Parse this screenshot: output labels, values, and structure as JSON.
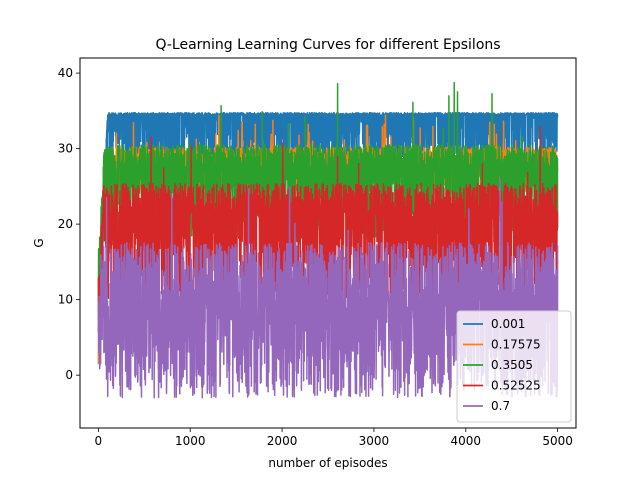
{
  "chart_data": {
    "type": "line",
    "title": "Q-Learning Learning Curves for different Epsilons",
    "xlabel": "number of episodes",
    "ylabel": "G",
    "xlim": [
      -200,
      5200
    ],
    "ylim": [
      -7,
      42
    ],
    "xticks": [
      0,
      1000,
      2000,
      3000,
      4000,
      5000
    ],
    "yticks": [
      0,
      10,
      20,
      30,
      40
    ],
    "grid": false,
    "legend_position": "lower right",
    "n_episodes": 5000,
    "series": [
      {
        "name": "0.001",
        "color": "#1f77b4",
        "start": 7,
        "rise_episodes": 100,
        "low_band": 27,
        "high": 34.8,
        "typical": 34.5,
        "spike_max": 34.8,
        "spike_rate": 0.0
      },
      {
        "name": "0.17575",
        "color": "#ff7f0e",
        "start": 5,
        "rise_episodes": 80,
        "low_band": 24,
        "high": 30.5,
        "typical": 28.5,
        "spike_max": 34.5,
        "spike_rate": 0.01
      },
      {
        "name": "0.3505",
        "color": "#2ca02c",
        "start": 12,
        "rise_episodes": 60,
        "low_band": 18,
        "high": 31,
        "typical": 28,
        "spike_max": 38.8,
        "spike_rate": 0.004
      },
      {
        "name": "0.52525",
        "color": "#d62728",
        "start": 8,
        "rise_episodes": 50,
        "low_band": 10,
        "high": 26,
        "typical": 22,
        "spike_max": 33,
        "spike_rate": 0.006
      },
      {
        "name": "0.7",
        "color": "#9467bd",
        "start": 6,
        "rise_episodes": 40,
        "low_band": -3,
        "high": 19,
        "typical": 10,
        "spike_max": 27,
        "spike_rate": 0.004
      }
    ]
  }
}
